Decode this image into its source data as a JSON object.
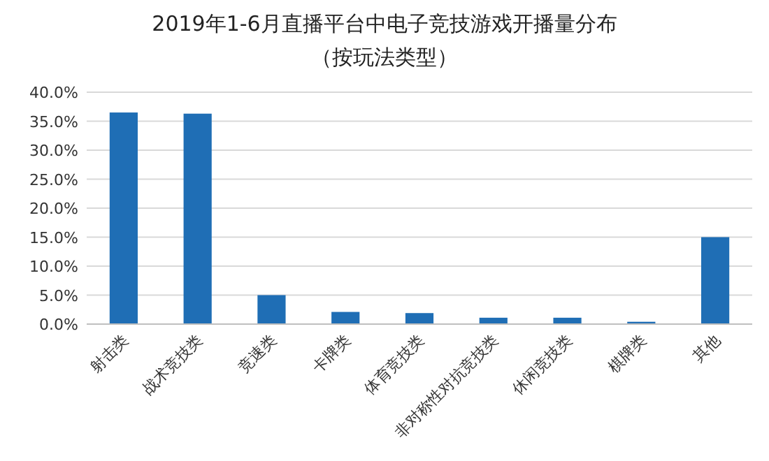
{
  "chart_data": {
    "type": "bar",
    "title": "2019年1-6月直播平台中电子竞技游戏开播量分布",
    "subtitle": "（按玩法类型）",
    "categories": [
      "射击类",
      "战术竞技类",
      "竞速类",
      "卡牌类",
      "体育竞技类",
      "非对称性对抗竞技类",
      "休闲竞技类",
      "棋牌类",
      "其他"
    ],
    "values": [
      36.5,
      36.3,
      5.0,
      2.1,
      1.9,
      1.1,
      1.1,
      0.4,
      15.0
    ],
    "color": "#1f6eb5",
    "ylim": [
      0,
      40
    ],
    "yticks": [
      {
        "value": 0,
        "label": "0.0%"
      },
      {
        "value": 5,
        "label": "5.0%"
      },
      {
        "value": 10,
        "label": "10.0%"
      },
      {
        "value": 15,
        "label": "15.0%"
      },
      {
        "value": 20,
        "label": "20.0%"
      },
      {
        "value": 25,
        "label": "25.0%"
      },
      {
        "value": 30,
        "label": "30.0%"
      },
      {
        "value": 35,
        "label": "35.0%"
      },
      {
        "value": 40,
        "label": "40.0%"
      }
    ],
    "grid": "y"
  }
}
